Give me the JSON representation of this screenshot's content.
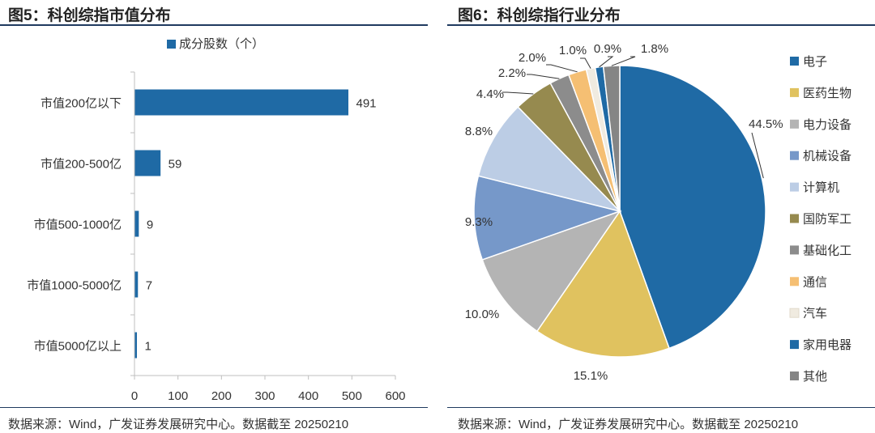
{
  "left_panel": {
    "title": "图5：科创综指市值分布",
    "source": "数据来源：Wind，广发证券发展研究中心。数据截至 20250210"
  },
  "right_panel": {
    "title": "图6：科创综指行业分布",
    "source": "数据来源：Wind，广发证券发展研究中心。数据截至 20250210"
  },
  "chart_data": [
    {
      "type": "bar",
      "orientation": "horizontal",
      "title": "图5：科创综指市值分布",
      "legend": [
        "成分股数（个）"
      ],
      "legend_position": "top",
      "categories": [
        "市值200亿以下",
        "市值200-500亿",
        "市值500-1000亿",
        "市值1000-5000亿",
        "市值5000亿以上"
      ],
      "series": [
        {
          "name": "成分股数（个）",
          "values": [
            491,
            59,
            9,
            7,
            1
          ],
          "color": "#1f6aa5"
        }
      ],
      "xlim": [
        0,
        600
      ],
      "xticks": [
        0,
        100,
        200,
        300,
        400,
        500,
        600
      ],
      "grid": false
    },
    {
      "type": "pie",
      "title": "图6：科创综指行业分布",
      "legend_position": "right",
      "slices": [
        {
          "label": "电子",
          "value": 44.5,
          "text": "44.5%",
          "color": "#1f6aa5"
        },
        {
          "label": "医药生物",
          "value": 15.1,
          "text": "15.1%",
          "color": "#e0c25f"
        },
        {
          "label": "电力设备",
          "value": 10.0,
          "text": "10.0%",
          "color": "#b4b4b4"
        },
        {
          "label": "机械设备",
          "value": 9.3,
          "text": "9.3%",
          "color": "#7698c9"
        },
        {
          "label": "计算机",
          "value": 8.8,
          "text": "8.8%",
          "color": "#bccde5"
        },
        {
          "label": "国防军工",
          "value": 4.4,
          "text": "4.4%",
          "color": "#968a4f"
        },
        {
          "label": "基础化工",
          "value": 2.2,
          "text": "2.2%",
          "color": "#8c8c8c"
        },
        {
          "label": "通信",
          "value": 2.0,
          "text": "2.0%",
          "color": "#f5bf73"
        },
        {
          "label": "汽车",
          "value": 1.0,
          "text": "1.0%",
          "color": "#f0ebe0"
        },
        {
          "label": "家用电器",
          "value": 0.9,
          "text": "0.9%",
          "color": "#1f6aa5"
        },
        {
          "label": "其他",
          "value": 1.8,
          "text": "1.8%",
          "color": "#858585"
        }
      ]
    }
  ]
}
